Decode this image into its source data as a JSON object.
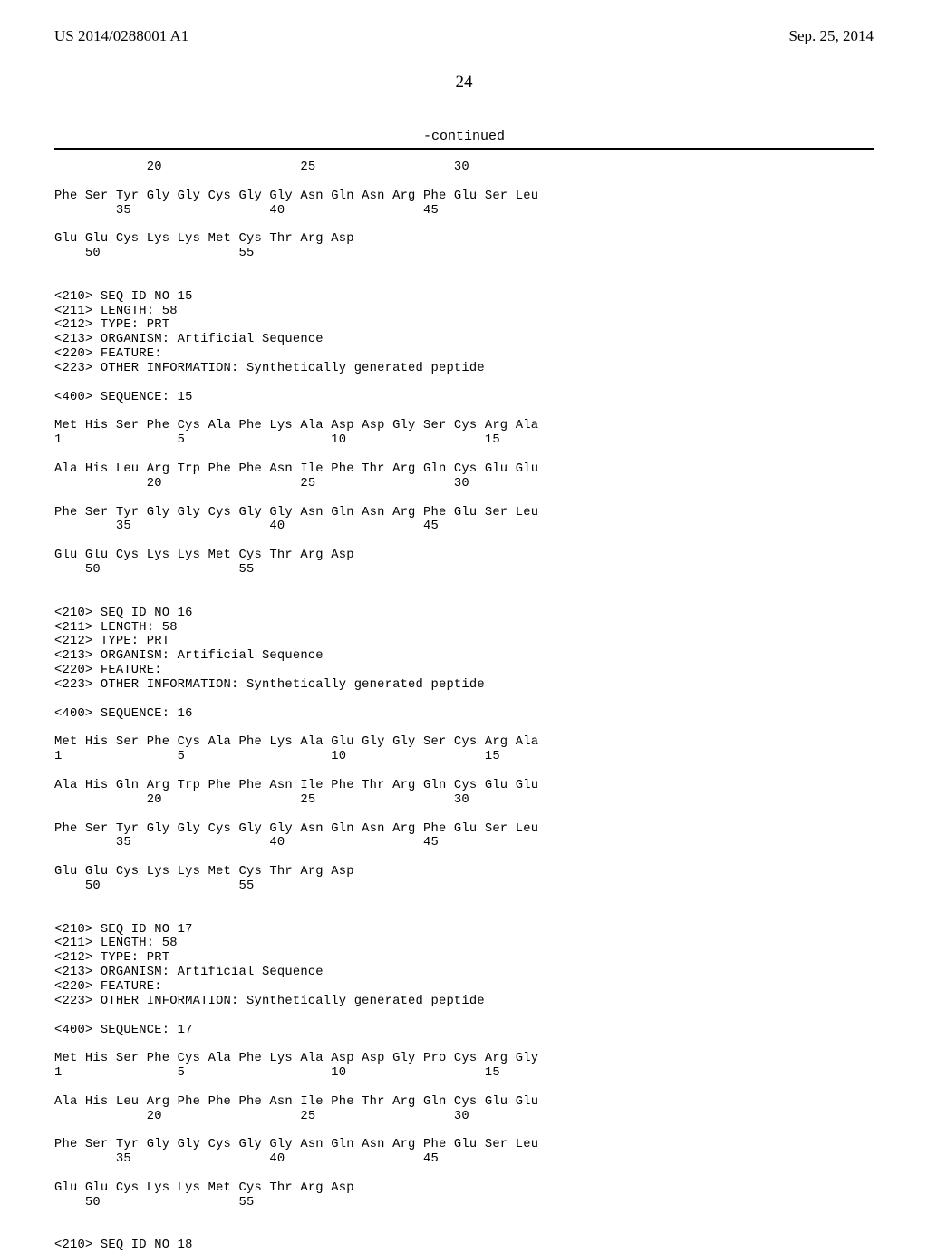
{
  "header": {
    "pub_number": "US 2014/0288001 A1",
    "pub_date": "Sep. 25, 2014"
  },
  "page_number": "24",
  "continued_label": "-continued",
  "sequence_text": "            20                  25                  30\n\nPhe Ser Tyr Gly Gly Cys Gly Gly Asn Gln Asn Arg Phe Glu Ser Leu\n        35                  40                  45\n\nGlu Glu Cys Lys Lys Met Cys Thr Arg Asp\n    50                  55\n\n\n<210> SEQ ID NO 15\n<211> LENGTH: 58\n<212> TYPE: PRT\n<213> ORGANISM: Artificial Sequence\n<220> FEATURE:\n<223> OTHER INFORMATION: Synthetically generated peptide\n\n<400> SEQUENCE: 15\n\nMet His Ser Phe Cys Ala Phe Lys Ala Asp Asp Gly Ser Cys Arg Ala\n1               5                   10                  15\n\nAla His Leu Arg Trp Phe Phe Asn Ile Phe Thr Arg Gln Cys Glu Glu\n            20                  25                  30\n\nPhe Ser Tyr Gly Gly Cys Gly Gly Asn Gln Asn Arg Phe Glu Ser Leu\n        35                  40                  45\n\nGlu Glu Cys Lys Lys Met Cys Thr Arg Asp\n    50                  55\n\n\n<210> SEQ ID NO 16\n<211> LENGTH: 58\n<212> TYPE: PRT\n<213> ORGANISM: Artificial Sequence\n<220> FEATURE:\n<223> OTHER INFORMATION: Synthetically generated peptide\n\n<400> SEQUENCE: 16\n\nMet His Ser Phe Cys Ala Phe Lys Ala Glu Gly Gly Ser Cys Arg Ala\n1               5                   10                  15\n\nAla His Gln Arg Trp Phe Phe Asn Ile Phe Thr Arg Gln Cys Glu Glu\n            20                  25                  30\n\nPhe Ser Tyr Gly Gly Cys Gly Gly Asn Gln Asn Arg Phe Glu Ser Leu\n        35                  40                  45\n\nGlu Glu Cys Lys Lys Met Cys Thr Arg Asp\n    50                  55\n\n\n<210> SEQ ID NO 17\n<211> LENGTH: 58\n<212> TYPE: PRT\n<213> ORGANISM: Artificial Sequence\n<220> FEATURE:\n<223> OTHER INFORMATION: Synthetically generated peptide\n\n<400> SEQUENCE: 17\n\nMet His Ser Phe Cys Ala Phe Lys Ala Asp Asp Gly Pro Cys Arg Gly\n1               5                   10                  15\n\nAla His Leu Arg Phe Phe Phe Asn Ile Phe Thr Arg Gln Cys Glu Glu\n            20                  25                  30\n\nPhe Ser Tyr Gly Gly Cys Gly Gly Asn Gln Asn Arg Phe Glu Ser Leu\n        35                  40                  45\n\nGlu Glu Cys Lys Lys Met Cys Thr Arg Asp\n    50                  55\n\n\n<210> SEQ ID NO 18"
}
